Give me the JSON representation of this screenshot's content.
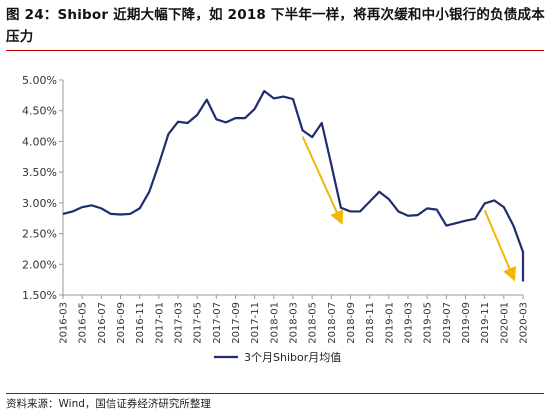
{
  "title": "图 24：Shibor 近期大幅下降，如 2018 下半年一样，将再次缓和中小银行的负债成本压力",
  "source": "资料来源：Wind，国信证券经济研究所整理",
  "colors": {
    "series": "#1f2d6e",
    "arrow": "#f2b705",
    "rule": "#c00000",
    "axis": "#999999"
  },
  "chart_data": {
    "type": "line",
    "ylim": [
      1.5,
      5.0
    ],
    "yticks": [
      "5.00%",
      "4.50%",
      "4.00%",
      "3.50%",
      "3.00%",
      "2.50%",
      "2.00%",
      "1.50%"
    ],
    "ytick_values": [
      5.0,
      4.5,
      4.0,
      3.5,
      3.0,
      2.5,
      2.0,
      1.5
    ],
    "xtick_labels": [
      "2016-03",
      "2016-05",
      "2016-07",
      "2016-09",
      "2016-11",
      "2017-01",
      "2017-03",
      "2017-05",
      "2017-07",
      "2017-09",
      "2017-11",
      "2018-01",
      "2018-03",
      "2018-05",
      "2018-07",
      "2018-09",
      "2018-11",
      "2019-01",
      "2019-03",
      "2019-05",
      "2019-07",
      "2019-09",
      "2019-11",
      "2020-01",
      "2020-03"
    ],
    "grid": false,
    "legend_position": "bottom",
    "series": [
      {
        "name": "3个月Shibor月均值",
        "x": [
          "2016-03",
          "2016-04",
          "2016-05",
          "2016-06",
          "2016-07",
          "2016-08",
          "2016-09",
          "2016-10",
          "2016-11",
          "2016-12",
          "2017-01",
          "2017-02",
          "2017-03",
          "2017-04",
          "2017-05",
          "2017-06",
          "2017-07",
          "2017-08",
          "2017-09",
          "2017-10",
          "2017-11",
          "2017-12",
          "2018-01",
          "2018-02",
          "2018-03",
          "2018-04",
          "2018-05",
          "2018-06",
          "2018-07",
          "2018-08",
          "2018-09",
          "2018-10",
          "2018-11",
          "2018-12",
          "2019-01",
          "2019-02",
          "2019-03",
          "2019-04",
          "2019-05",
          "2019-06",
          "2019-07",
          "2019-08",
          "2019-09",
          "2019-10",
          "2019-11",
          "2019-12",
          "2020-01",
          "2020-02",
          "2020-03"
        ],
        "values": [
          2.82,
          2.86,
          2.93,
          2.96,
          2.91,
          2.82,
          2.81,
          2.82,
          2.91,
          3.18,
          3.63,
          4.12,
          4.32,
          4.3,
          4.43,
          4.68,
          4.36,
          4.31,
          4.38,
          4.38,
          4.53,
          4.82,
          4.7,
          4.73,
          4.69,
          4.18,
          4.07,
          4.3,
          3.62,
          2.92,
          2.86,
          2.86,
          3.02,
          3.18,
          3.06,
          2.86,
          2.79,
          2.8,
          2.91,
          2.89,
          2.63,
          2.67,
          2.71,
          2.74,
          2.99,
          3.04,
          2.93,
          2.63,
          2.2
        ]
      }
    ],
    "annotations": [
      {
        "type": "arrow",
        "from": [
          "2018-04",
          4.08
        ],
        "to": [
          "2018-08",
          2.7
        ]
      },
      {
        "type": "arrow",
        "from": [
          "2019-11",
          2.88
        ],
        "to": [
          "2020-02",
          1.78
        ]
      }
    ],
    "extra_point": [
      "2020-03",
      1.72
    ]
  }
}
